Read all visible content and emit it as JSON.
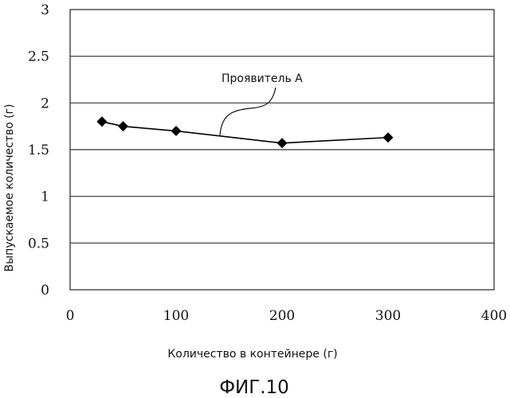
{
  "chart_data": {
    "type": "line",
    "xlabel": "Количество в контейнере (г)",
    "ylabel": "Выпускаемое количество (г)",
    "xlim": [
      0,
      400
    ],
    "ylim": [
      0,
      3
    ],
    "xticks": [
      "0",
      "100",
      "200",
      "300",
      "400"
    ],
    "yticks": [
      "0",
      "0.5",
      "1",
      "1.5",
      "2",
      "2.5",
      "3"
    ],
    "grid": "horizontal",
    "marker": "diamond",
    "series": [
      {
        "name": "Проявитель А",
        "color": "#000000",
        "x": [
          30,
          50,
          100,
          200,
          300
        ],
        "y": [
          1.8,
          1.75,
          1.7,
          1.57,
          1.63
        ]
      }
    ],
    "annotation": "Проявитель А",
    "caption": "ФИГ.10"
  }
}
